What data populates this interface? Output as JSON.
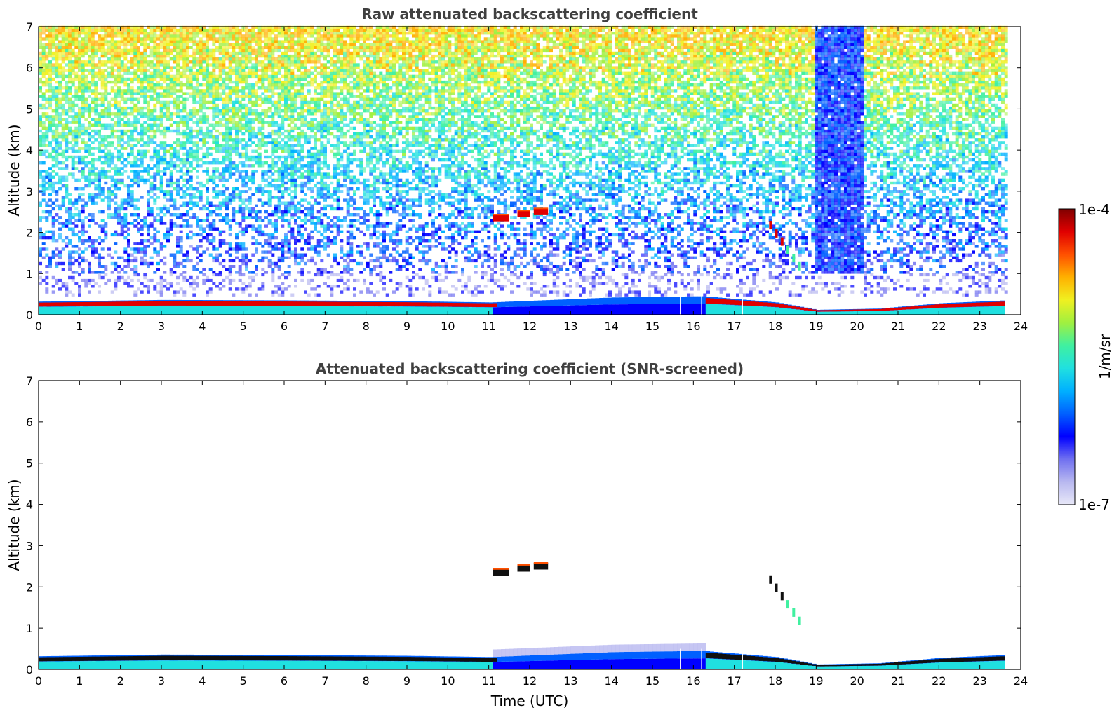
{
  "chart_data": [
    {
      "type": "heatmap",
      "title": "Raw attenuated backscattering coefficient",
      "xlabel": "",
      "ylabel": "Altitude (km)",
      "xlim": [
        0,
        24
      ],
      "ylim": [
        0,
        7
      ],
      "xticks": [
        "0",
        "1",
        "2",
        "3",
        "4",
        "5",
        "6",
        "7",
        "8",
        "9",
        "10",
        "11",
        "12",
        "13",
        "14",
        "15",
        "16",
        "17",
        "18",
        "19",
        "20",
        "21",
        "22",
        "23",
        "24"
      ],
      "yticks": [
        "0",
        "1",
        "2",
        "3",
        "4",
        "5",
        "6",
        "7"
      ],
      "data_end_time": 23.6,
      "boundary_layer_top_km": [
        {
          "t": 0,
          "z": 0.32
        },
        {
          "t": 3,
          "z": 0.36
        },
        {
          "t": 6,
          "z": 0.35
        },
        {
          "t": 9,
          "z": 0.33
        },
        {
          "t": 11,
          "z": 0.3
        },
        {
          "t": 14,
          "z": 0.42
        },
        {
          "t": 16.2,
          "z": 0.45
        },
        {
          "t": 18,
          "z": 0.3
        },
        {
          "t": 19,
          "z": 0.12
        },
        {
          "t": 20.5,
          "z": 0.15
        },
        {
          "t": 22,
          "z": 0.28
        },
        {
          "t": 23.6,
          "z": 0.35
        }
      ],
      "cloud_layers": [
        {
          "start": 11.1,
          "end": 11.5,
          "altitude_km": 2.35
        },
        {
          "start": 11.7,
          "end": 12.0,
          "altitude_km": 2.45
        },
        {
          "start": 12.1,
          "end": 12.45,
          "altitude_km": 2.5
        },
        {
          "start": 17.85,
          "end": 18.7,
          "altitude_km": 2.2
        }
      ],
      "high_noise_period": {
        "start": 18.95,
        "end": 20.1
      }
    },
    {
      "type": "heatmap",
      "title": "Attenuated backscattering coefficient (SNR-screened)",
      "xlabel": "Time (UTC)",
      "ylabel": "Altitude (km)",
      "xlim": [
        0,
        24
      ],
      "ylim": [
        0,
        7
      ],
      "xticks": [
        "0",
        "1",
        "2",
        "3",
        "4",
        "5",
        "6",
        "7",
        "8",
        "9",
        "10",
        "11",
        "12",
        "13",
        "14",
        "15",
        "16",
        "17",
        "18",
        "19",
        "20",
        "21",
        "22",
        "23",
        "24"
      ],
      "yticks": [
        "0",
        "1",
        "2",
        "3",
        "4",
        "5",
        "6",
        "7"
      ],
      "data_end_time": 23.6
    }
  ],
  "colorbar": {
    "min_label": "1e-7",
    "max_label": "1e-4",
    "unit_label": "1/m/sr",
    "scale": "log",
    "colors": [
      "#e8e8f8",
      "#b8b8f0",
      "#7070f0",
      "#0000ff",
      "#0060ff",
      "#00b0ff",
      "#20e0e0",
      "#40f0a0",
      "#a0f040",
      "#f0f020",
      "#ffb000",
      "#ff5000",
      "#e00000",
      "#800000"
    ]
  }
}
